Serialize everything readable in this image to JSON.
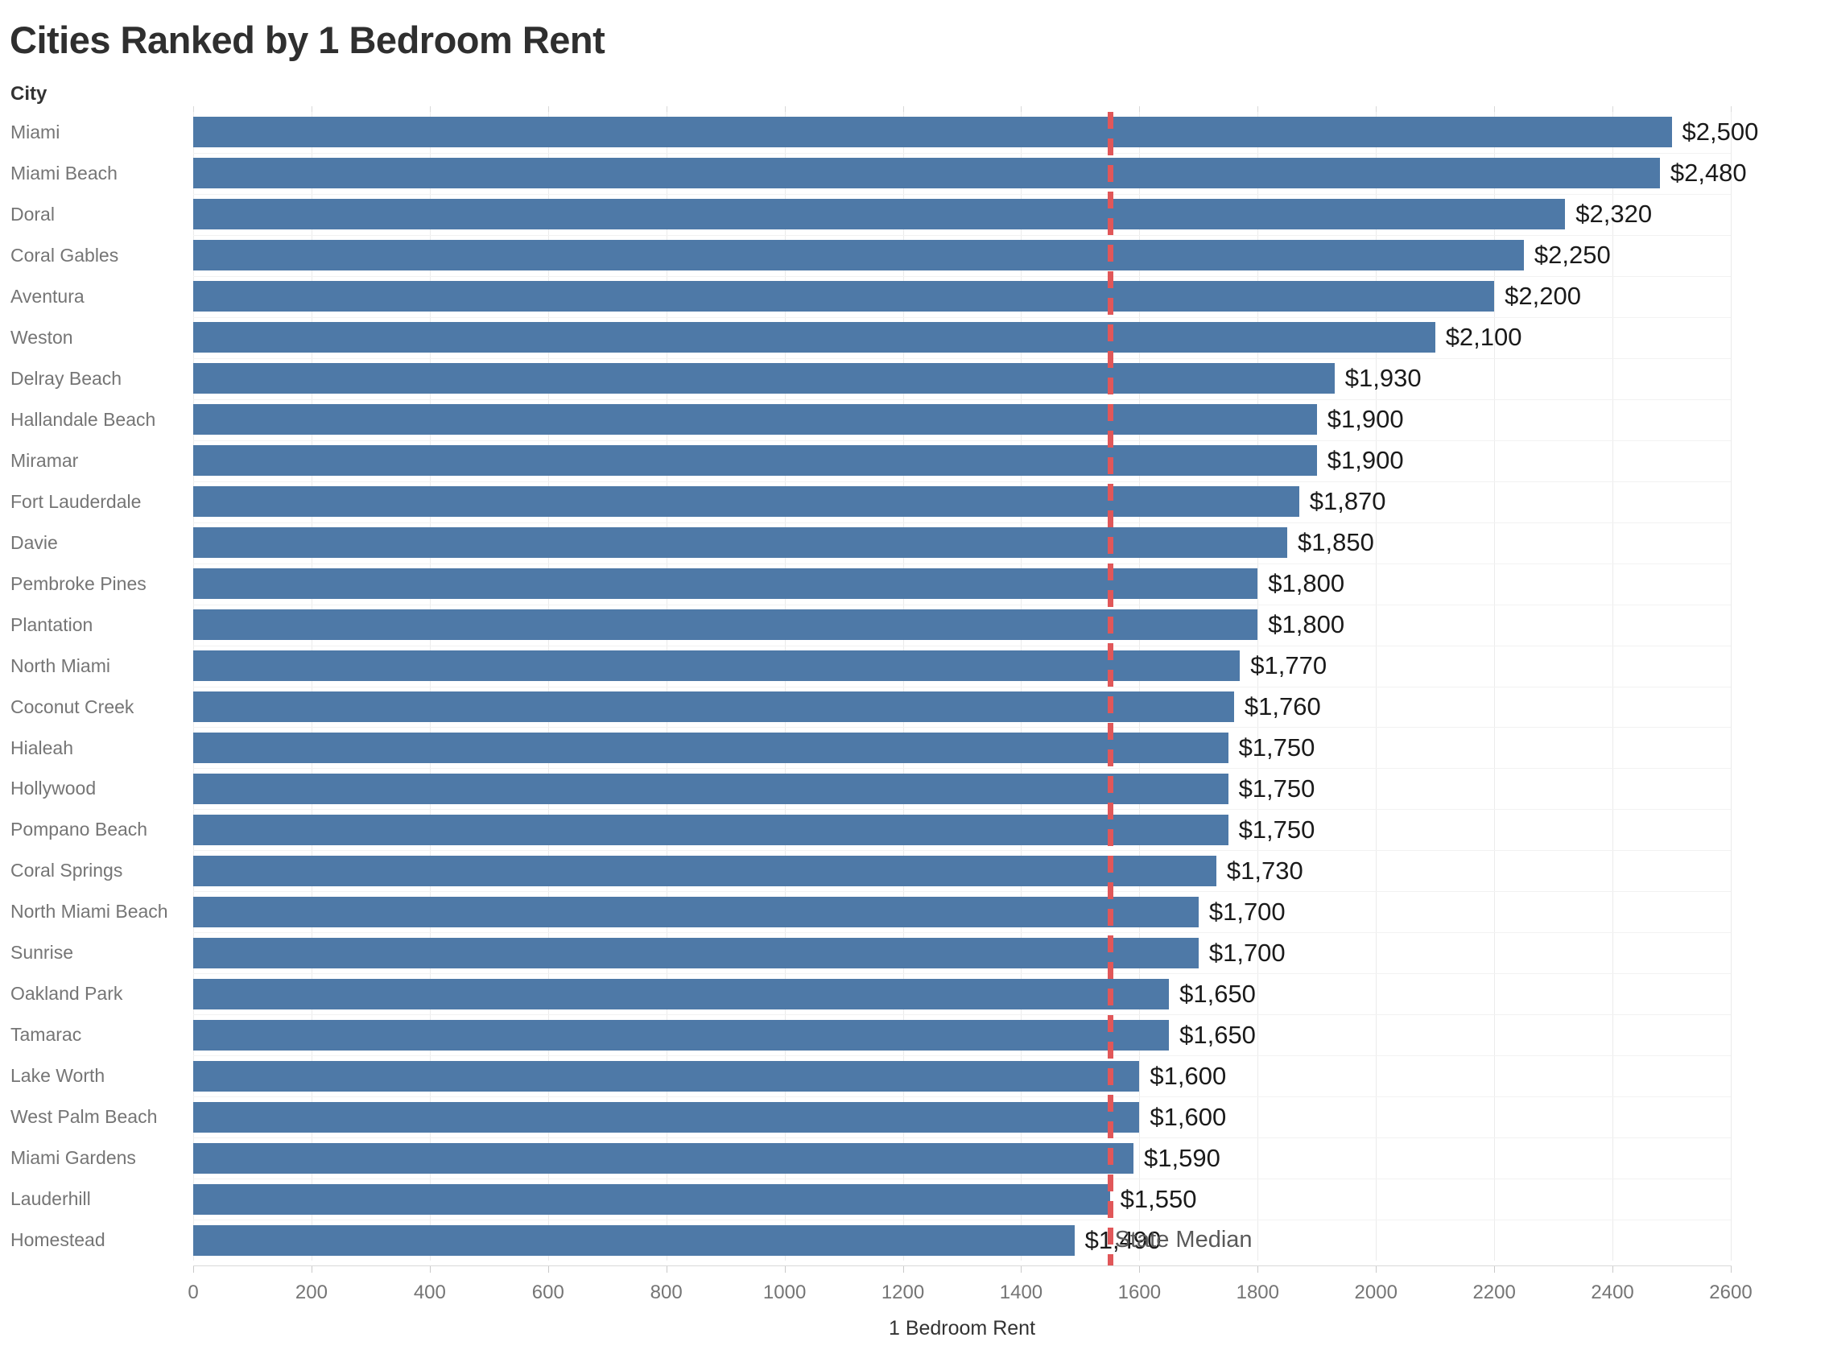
{
  "title": "Cities Ranked by 1 Bedroom Rent",
  "row_header": "City",
  "colors": {
    "bar": "#4e79a7",
    "median_line": "#e15759",
    "gridline": "#ebebeb",
    "value_label": "#1a1a1a",
    "city_label": "#757575"
  },
  "chart_data": {
    "type": "bar",
    "orientation": "horizontal",
    "title": "Cities Ranked by 1 Bedroom Rent",
    "xlabel": "1 Bedroom Rent",
    "ylabel": "City",
    "xlim": [
      0,
      2600
    ],
    "xticks": [
      0,
      200,
      400,
      600,
      800,
      1000,
      1200,
      1400,
      1600,
      1800,
      2000,
      2200,
      2400,
      2600
    ],
    "grid": true,
    "categories": [
      "Miami",
      "Miami Beach",
      "Doral",
      "Coral Gables",
      "Aventura",
      "Weston",
      "Delray Beach",
      "Hallandale Beach",
      "Miramar",
      "Fort Lauderdale",
      "Davie",
      "Pembroke Pines",
      "Plantation",
      "North Miami",
      "Coconut Creek",
      "Hialeah",
      "Hollywood",
      "Pompano Beach",
      "Coral Springs",
      "North Miami Beach",
      "Sunrise",
      "Oakland Park",
      "Tamarac",
      "Lake Worth",
      "West Palm Beach",
      "Miami Gardens",
      "Lauderhill",
      "Homestead"
    ],
    "values": [
      2500,
      2480,
      2320,
      2250,
      2200,
      2100,
      1930,
      1900,
      1900,
      1870,
      1850,
      1800,
      1800,
      1770,
      1760,
      1750,
      1750,
      1750,
      1730,
      1700,
      1700,
      1650,
      1650,
      1600,
      1600,
      1590,
      1550,
      1490
    ],
    "value_labels": [
      "$2,500",
      "$2,480",
      "$2,320",
      "$2,250",
      "$2,200",
      "$2,100",
      "$1,930",
      "$1,900",
      "$1,900",
      "$1,870",
      "$1,850",
      "$1,800",
      "$1,800",
      "$1,770",
      "$1,760",
      "$1,750",
      "$1,750",
      "$1,750",
      "$1,730",
      "$1,700",
      "$1,700",
      "$1,650",
      "$1,650",
      "$1,600",
      "$1,600",
      "$1,590",
      "$1,550",
      "$1,490"
    ],
    "reference_line": {
      "label": "State Median",
      "value": 1550
    }
  }
}
